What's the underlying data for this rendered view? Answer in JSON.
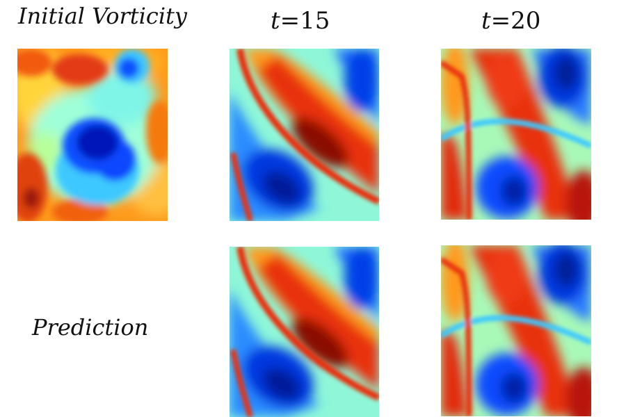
{
  "labels": {
    "initial": "Initial Vorticity",
    "prediction": "Prediction",
    "t15_var": "t",
    "t15_val": "=15",
    "t20_var": "t",
    "t20_val": "=20"
  },
  "colormap": [
    "#00008f",
    "#0040ff",
    "#22b8ff",
    "#7ff5e8",
    "#fff23a",
    "#ff8c00",
    "#e31a1c",
    "#7a0000"
  ]
}
